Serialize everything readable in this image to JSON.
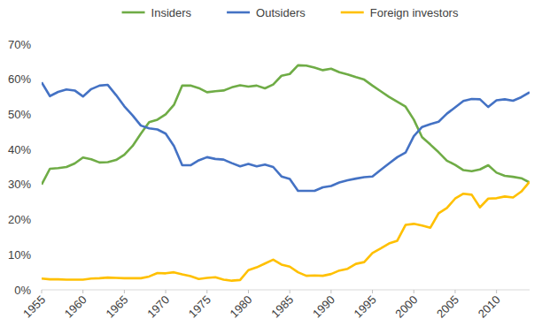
{
  "chart_data": {
    "type": "line",
    "x": [
      1955,
      1956,
      1957,
      1958,
      1959,
      1960,
      1961,
      1962,
      1963,
      1964,
      1965,
      1966,
      1967,
      1968,
      1969,
      1970,
      1971,
      1972,
      1973,
      1974,
      1975,
      1976,
      1977,
      1978,
      1979,
      1980,
      1981,
      1982,
      1983,
      1984,
      1985,
      1986,
      1987,
      1988,
      1989,
      1990,
      1991,
      1992,
      1993,
      1994,
      1995,
      1996,
      1997,
      1998,
      1999,
      2000,
      2001,
      2002,
      2003,
      2004,
      2005,
      2006,
      2007,
      2008,
      2009,
      2010,
      2011,
      2012,
      2013,
      2014
    ],
    "series": [
      {
        "name": "Insiders",
        "color": "#6fac46",
        "values": [
          30,
          34.5,
          34.7,
          35,
          36,
          37.7,
          37.2,
          36.3,
          36.4,
          37,
          38.5,
          41,
          44.5,
          47.8,
          48.5,
          50,
          52.7,
          58.2,
          58.2,
          57.5,
          56.3,
          56.6,
          56.8,
          57.7,
          58.3,
          57.9,
          58.2,
          57.4,
          58.5,
          61,
          61.5,
          64,
          63.9,
          63.3,
          62.6,
          63,
          62,
          61.4,
          60.6,
          59.9,
          58.2,
          56.6,
          55,
          53.6,
          52.2,
          48.5,
          43.5,
          41.4,
          39.2,
          36.8,
          35.6,
          34.1,
          33.8,
          34.3,
          35.5,
          33.4,
          32.5,
          32.2,
          31.8,
          30.6
        ]
      },
      {
        "name": "Outsiders",
        "color": "#4472c4",
        "values": [
          59.1,
          55.2,
          56.4,
          57.1,
          56.8,
          55.1,
          57.2,
          58.2,
          58.4,
          55.5,
          52.3,
          49.7,
          46.8,
          46,
          45.7,
          44.5,
          41,
          35.5,
          35.5,
          36.9,
          37.8,
          37.3,
          37.1,
          36.1,
          35.2,
          35.9,
          35.2,
          35.7,
          35,
          32.3,
          31.6,
          28.2,
          28.2,
          28.2,
          29.2,
          29.6,
          30.6,
          31.2,
          31.7,
          32.1,
          32.3,
          34.2,
          36,
          37.8,
          39.1,
          43.8,
          46.4,
          47.2,
          47.9,
          50.2,
          52,
          53.8,
          54.4,
          54.3,
          52.1,
          54,
          54.3,
          53.9,
          54.9,
          56.3
        ]
      },
      {
        "name": "Foreign investors",
        "color": "#ffc000",
        "values": [
          3.2,
          3,
          3,
          2.9,
          2.9,
          2.9,
          3.2,
          3.3,
          3.5,
          3.4,
          3.3,
          3.3,
          3.3,
          3.8,
          4.8,
          4.7,
          5,
          4.4,
          3.9,
          3.1,
          3.4,
          3.6,
          2.9,
          2.6,
          2.8,
          5.6,
          6.4,
          7.5,
          8.6,
          7.2,
          6.6,
          5,
          4,
          4.1,
          4,
          4.5,
          5.5,
          6,
          7.4,
          7.9,
          10.5,
          11.8,
          13.2,
          14,
          18.5,
          18.8,
          18.3,
          17.7,
          21.8,
          23.3,
          26,
          27.4,
          27.1,
          23.5,
          26,
          26.1,
          26.6,
          26.3,
          28,
          30.8
        ]
      }
    ],
    "xlim": [
      1955,
      2014
    ],
    "xticks": [
      1955,
      1960,
      1965,
      1970,
      1975,
      1980,
      1985,
      1990,
      1995,
      2000,
      2005,
      2010
    ],
    "ylim": [
      0,
      70
    ],
    "yticks": [
      {
        "value": 0,
        "label": "0%"
      },
      {
        "value": 10,
        "label": "10%"
      },
      {
        "value": 20,
        "label": "20%"
      },
      {
        "value": 30,
        "label": "30%"
      },
      {
        "value": 40,
        "label": "40%"
      },
      {
        "value": 50,
        "label": "50%"
      },
      {
        "value": 60,
        "label": "60%"
      },
      {
        "value": 70,
        "label": "70%"
      }
    ],
    "grid": false,
    "legend": "top"
  }
}
